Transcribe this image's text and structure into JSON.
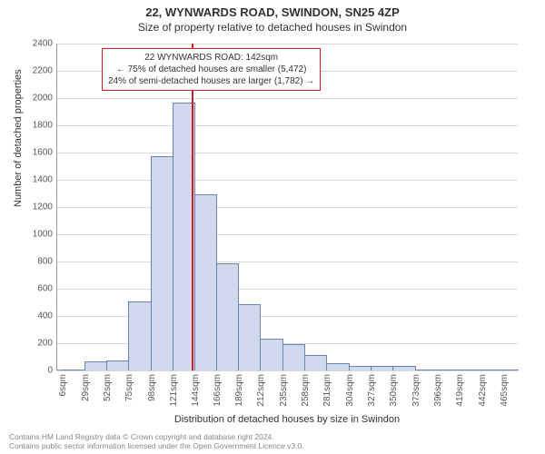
{
  "titles": {
    "main": "22, WYNWARDS ROAD, SWINDON, SN25 4ZP",
    "sub": "Size of property relative to detached houses in Swindon",
    "y_axis": "Number of detached properties",
    "x_axis": "Distribution of detached houses by size in Swindon"
  },
  "annotation": {
    "line1": "22 WYNWARDS ROAD: 142sqm",
    "line2": "← 75% of detached houses are smaller (5,472)",
    "line3": "24% of semi-detached houses are larger (1,782) →",
    "border_color": "#d01c26"
  },
  "footer": {
    "line1": "Contains HM Land Registry data © Crown copyright and database right 2024.",
    "line2": "Contains public sector information licensed under the Open Government Licence v3.0."
  },
  "chart": {
    "type": "histogram",
    "bar_fill": "#cfd8ed",
    "bar_stroke": "#6b82b6",
    "grid_color": "#d9d9d9",
    "axis_color": "#999999",
    "background": "#ffffff",
    "marker_color": "#d01c26",
    "marker_x_value": 142,
    "ylim": [
      0,
      2400
    ],
    "y_ticks": [
      0,
      200,
      400,
      600,
      800,
      1000,
      1200,
      1400,
      1600,
      1800,
      2000,
      2200,
      2400
    ],
    "x_range": [
      0,
      480
    ],
    "x_ticks": [
      {
        "v": 6,
        "label": "6sqm"
      },
      {
        "v": 29,
        "label": "29sqm"
      },
      {
        "v": 52,
        "label": "52sqm"
      },
      {
        "v": 75,
        "label": "75sqm"
      },
      {
        "v": 98,
        "label": "98sqm"
      },
      {
        "v": 121,
        "label": "121sqm"
      },
      {
        "v": 144,
        "label": "144sqm"
      },
      {
        "v": 166,
        "label": "166sqm"
      },
      {
        "v": 189,
        "label": "189sqm"
      },
      {
        "v": 212,
        "label": "212sqm"
      },
      {
        "v": 235,
        "label": "235sqm"
      },
      {
        "v": 258,
        "label": "258sqm"
      },
      {
        "v": 281,
        "label": "281sqm"
      },
      {
        "v": 304,
        "label": "304sqm"
      },
      {
        "v": 327,
        "label": "327sqm"
      },
      {
        "v": 350,
        "label": "350sqm"
      },
      {
        "v": 373,
        "label": "373sqm"
      },
      {
        "v": 396,
        "label": "396sqm"
      },
      {
        "v": 419,
        "label": "419sqm"
      },
      {
        "v": 442,
        "label": "442sqm"
      },
      {
        "v": 465,
        "label": "465sqm"
      }
    ],
    "bars": [
      {
        "x": 6,
        "w": 23,
        "y": 0
      },
      {
        "x": 29,
        "w": 23,
        "y": 60
      },
      {
        "x": 52,
        "w": 23,
        "y": 70
      },
      {
        "x": 75,
        "w": 23,
        "y": 500
      },
      {
        "x": 98,
        "w": 23,
        "y": 1570
      },
      {
        "x": 121,
        "w": 23,
        "y": 1960
      },
      {
        "x": 144,
        "w": 22,
        "y": 1290
      },
      {
        "x": 166,
        "w": 23,
        "y": 780
      },
      {
        "x": 189,
        "w": 23,
        "y": 480
      },
      {
        "x": 212,
        "w": 23,
        "y": 230
      },
      {
        "x": 235,
        "w": 23,
        "y": 190
      },
      {
        "x": 258,
        "w": 23,
        "y": 110
      },
      {
        "x": 281,
        "w": 23,
        "y": 50
      },
      {
        "x": 304,
        "w": 23,
        "y": 30
      },
      {
        "x": 327,
        "w": 23,
        "y": 25
      },
      {
        "x": 350,
        "w": 23,
        "y": 25
      },
      {
        "x": 373,
        "w": 23,
        "y": 0
      },
      {
        "x": 396,
        "w": 23,
        "y": 0
      },
      {
        "x": 419,
        "w": 23,
        "y": 0
      },
      {
        "x": 442,
        "w": 23,
        "y": 0
      },
      {
        "x": 465,
        "w": 15,
        "y": 0
      }
    ]
  }
}
